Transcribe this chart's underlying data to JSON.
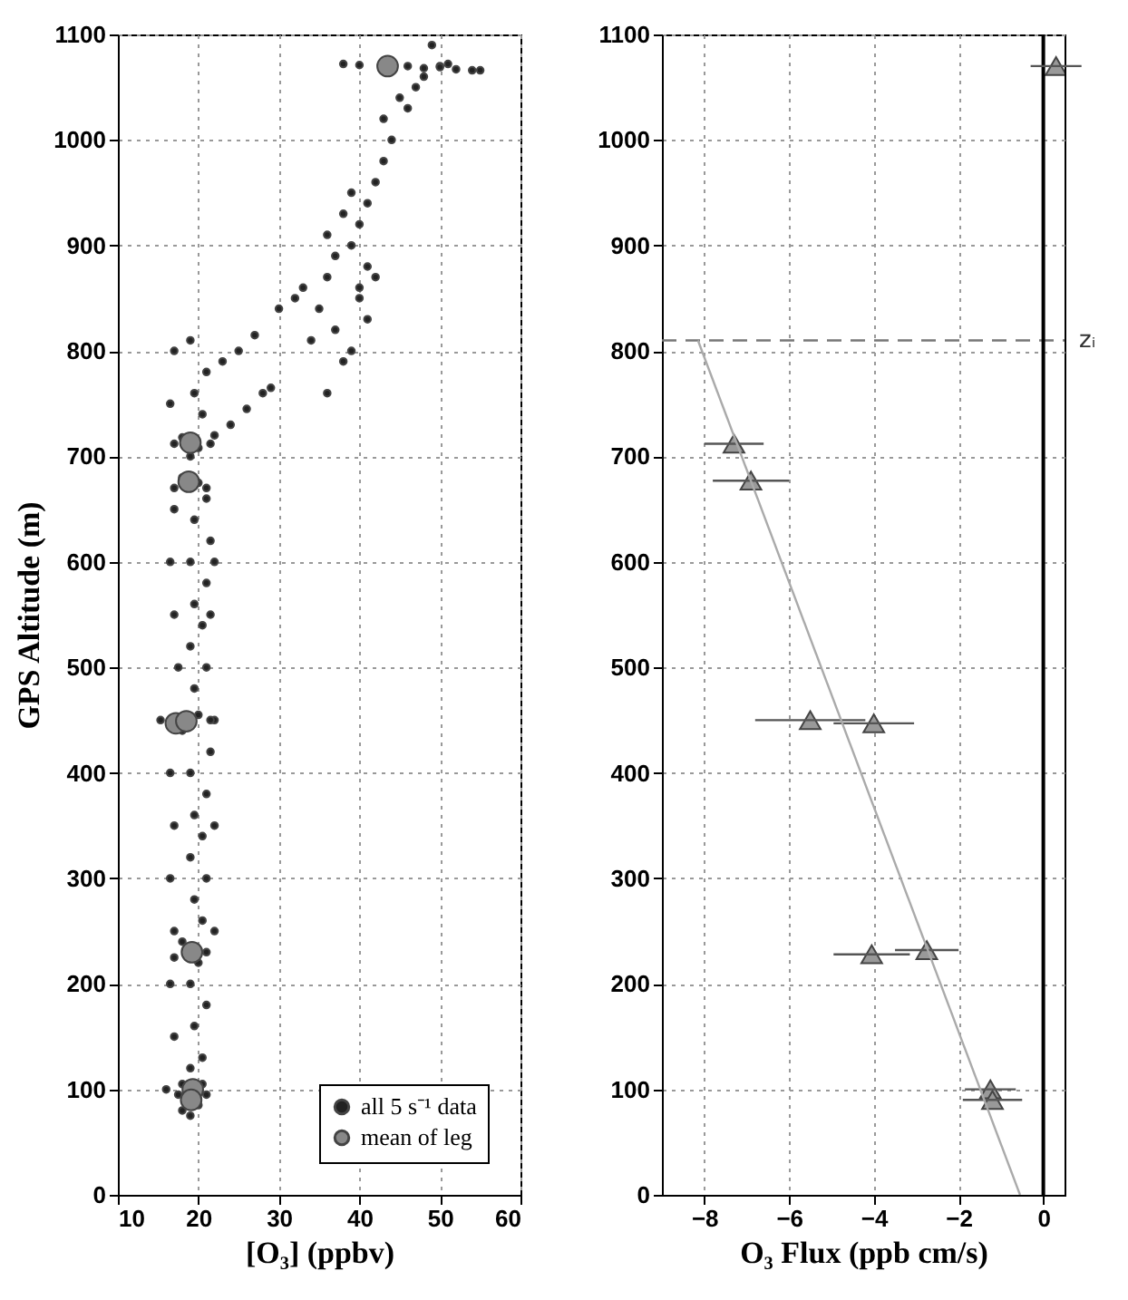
{
  "chart_data": [
    {
      "type": "scatter",
      "xlabel": "[O₃]  (ppbv)",
      "ylabel": "GPS Altitude (m)",
      "xlim": [
        10,
        60
      ],
      "ylim": [
        0,
        1100
      ],
      "xticks": [
        10,
        20,
        30,
        40,
        50,
        60
      ],
      "yticks": [
        0,
        100,
        200,
        300,
        400,
        500,
        600,
        700,
        800,
        900,
        1000,
        1100
      ],
      "grid": true,
      "legend": "bottom right",
      "series": [
        {
          "name": "all 5 s⁻¹ data",
          "color": "#222222",
          "marker": "circle",
          "x": [
            16,
            17,
            16.5,
            17,
            16.5,
            17,
            16.5,
            17.5,
            17,
            16.5,
            17,
            16.5,
            17,
            19,
            19.5,
            19,
            19.5,
            19,
            19.5,
            19,
            19.5,
            19,
            19.5,
            19,
            19.5,
            19,
            19.5,
            19,
            20.5,
            21,
            20.5,
            21,
            20.5,
            21,
            21.5,
            21,
            20.5,
            21,
            21.5,
            21,
            20.5,
            21,
            22,
            22,
            22,
            21.5,
            22,
            18,
            20,
            17.5,
            21,
            19,
            18,
            20.5,
            17,
            21,
            18,
            20,
            15.3,
            21.5,
            18,
            20,
            17,
            21,
            18,
            20,
            17,
            21.5,
            18,
            20,
            22,
            24,
            26,
            28,
            29,
            23,
            25,
            27,
            30,
            32,
            34,
            33,
            36,
            38,
            37,
            35,
            36,
            37,
            36,
            38,
            39,
            40,
            41,
            39,
            40,
            41,
            42,
            40,
            39,
            41,
            42,
            43,
            44,
            43,
            45,
            46,
            47,
            48,
            50,
            49,
            38,
            40,
            46,
            48,
            50,
            52,
            54,
            55,
            51
          ],
          "values": [
            100,
            150,
            200,
            250,
            300,
            350,
            400,
            500,
            550,
            600,
            650,
            750,
            800,
            120,
            160,
            200,
            280,
            320,
            360,
            400,
            480,
            520,
            560,
            600,
            640,
            700,
            760,
            810,
            130,
            180,
            260,
            300,
            340,
            380,
            420,
            500,
            540,
            580,
            620,
            660,
            740,
            780,
            250,
            350,
            450,
            550,
            600,
            80,
            85,
            95,
            95,
            75,
            105,
            105,
            225,
            230,
            240,
            220,
            450,
            450,
            440,
            455,
            670,
            670,
            680,
            675,
            712,
            712,
            718,
            708,
            720,
            730,
            745,
            760,
            765,
            790,
            800,
            815,
            840,
            850,
            810,
            860,
            760,
            790,
            820,
            840,
            870,
            890,
            910,
            930,
            900,
            860,
            830,
            800,
            850,
            880,
            870,
            920,
            950,
            940,
            960,
            980,
            1000,
            1020,
            1040,
            1030,
            1050,
            1060,
            1070,
            1090,
            1072,
            1071,
            1070,
            1068,
            1069,
            1067,
            1066,
            1066,
            1072
          ]
        },
        {
          "name": "mean of leg",
          "color": "#888888",
          "marker": "circle",
          "x": [
            43.5,
            19,
            18.8,
            17.2,
            18.5,
            19.2,
            19.3,
            19.1
          ],
          "values": [
            1070,
            713,
            676,
            447,
            449,
            230,
            100,
            90
          ]
        }
      ]
    },
    {
      "type": "scatter",
      "xlabel": "O₃ Flux  (ppb cm/s)",
      "xlim": [
        -9,
        0.5
      ],
      "ylim": [
        0,
        1100
      ],
      "xticks": [
        -8,
        -6,
        -4,
        -2,
        0
      ],
      "yticks": [
        0,
        100,
        200,
        300,
        400,
        500,
        600,
        700,
        800,
        900,
        1000,
        1100
      ],
      "grid": true,
      "series": [
        {
          "color": "#999999",
          "marker": "triangle",
          "x": [
            0.3,
            -7.3,
            -6.9,
            -5.5,
            -4,
            -4.05,
            -2.75,
            -1.25,
            -1.2
          ],
          "values": [
            1070,
            712,
            677,
            450,
            447,
            228,
            232,
            100,
            90
          ],
          "xerrors": [
            0.6,
            0.7,
            0.9,
            1.3,
            0.95,
            0.9,
            0.75,
            0.6,
            0.7
          ]
        },
        {
          "type": "line",
          "color": "#aaaaaa",
          "x": [
            -8.15,
            -0.55
          ],
          "values": [
            810,
            0
          ]
        }
      ],
      "ref_lines": [
        {
          "axis": "y",
          "value": 810,
          "label": "zᵢ",
          "color": "#777777",
          "line_style": "dashed"
        },
        {
          "axis": "x",
          "value": 0,
          "color": "#000000",
          "line_style": "solid"
        }
      ]
    }
  ]
}
